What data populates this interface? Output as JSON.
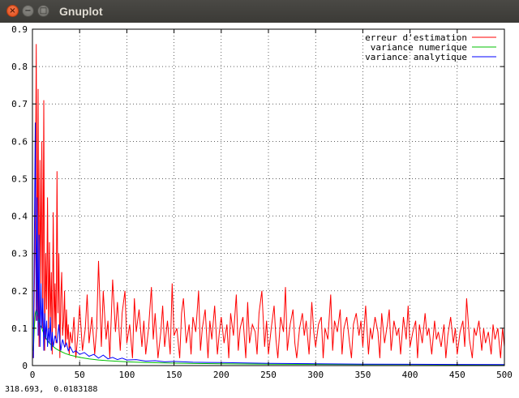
{
  "window": {
    "title": "Gnuplot",
    "close_glyph": "×",
    "min_glyph": "−",
    "max_glyph": "□"
  },
  "status": {
    "coordinates": "318.693,  0.0183188"
  },
  "chart_data": {
    "type": "line",
    "title": "",
    "xlabel": "",
    "ylabel": "",
    "xlim": [
      0,
      500
    ],
    "ylim": [
      0,
      0.9
    ],
    "xticks": [
      "0",
      "50",
      "100",
      "150",
      "200",
      "250",
      "300",
      "350",
      "400",
      "450",
      "500"
    ],
    "yticks": [
      "0",
      "0.1",
      "0.2",
      "0.3",
      "0.4",
      "0.5",
      "0.6",
      "0.7",
      "0.8",
      "0.9"
    ],
    "grid": true,
    "legend_position": "top-right",
    "series": [
      {
        "name": "erreur d'estimation",
        "color": "#ff0000",
        "x": [
          1,
          3,
          4,
          5,
          6,
          7,
          8,
          9,
          10,
          11,
          12,
          13,
          14,
          15,
          16,
          17,
          18,
          19,
          20,
          21,
          22,
          23,
          24,
          25,
          26,
          27,
          28,
          29,
          30,
          31,
          32,
          33,
          34,
          35,
          36,
          37,
          38,
          39,
          40,
          42,
          44,
          46,
          48,
          50,
          53,
          56,
          58,
          60,
          63,
          66,
          68,
          70,
          73,
          75,
          78,
          80,
          82,
          85,
          88,
          90,
          93,
          95,
          98,
          100,
          103,
          106,
          108,
          110,
          113,
          116,
          118,
          120,
          123,
          126,
          128,
          130,
          133,
          136,
          138,
          140,
          143,
          146,
          148,
          150,
          153,
          156,
          158,
          160,
          163,
          166,
          168,
          170,
          173,
          176,
          178,
          180,
          183,
          186,
          188,
          190,
          193,
          196,
          198,
          200,
          203,
          206,
          208,
          210,
          213,
          216,
          218,
          220,
          223,
          226,
          228,
          230,
          233,
          236,
          238,
          240,
          243,
          246,
          248,
          250,
          253,
          256,
          258,
          260,
          263,
          266,
          268,
          270,
          273,
          276,
          278,
          280,
          283,
          286,
          288,
          290,
          293,
          296,
          298,
          300,
          303,
          306,
          308,
          310,
          313,
          316,
          318,
          320,
          323,
          326,
          328,
          330,
          333,
          336,
          338,
          340,
          343,
          346,
          348,
          350,
          353,
          356,
          358,
          360,
          363,
          366,
          368,
          370,
          373,
          376,
          378,
          380,
          383,
          386,
          388,
          390,
          393,
          396,
          398,
          400,
          403,
          406,
          408,
          410,
          413,
          416,
          418,
          420,
          423,
          426,
          428,
          430,
          433,
          436,
          438,
          440,
          443,
          446,
          448,
          450,
          453,
          456,
          458,
          460,
          463,
          466,
          468,
          470,
          473,
          476,
          478,
          480,
          483,
          486,
          488,
          490,
          493,
          496,
          498,
          500
        ],
        "values": [
          0.02,
          0.38,
          0.86,
          0.12,
          0.74,
          0.05,
          0.55,
          0.2,
          0.6,
          0.1,
          0.71,
          0.04,
          0.3,
          0.15,
          0.45,
          0.08,
          0.33,
          0.12,
          0.25,
          0.03,
          0.41,
          0.1,
          0.22,
          0.06,
          0.52,
          0.14,
          0.3,
          0.02,
          0.18,
          0.25,
          0.08,
          0.12,
          0.2,
          0.05,
          0.15,
          0.07,
          0.11,
          0.03,
          0.09,
          0.06,
          0.13,
          0.02,
          0.08,
          0.16,
          0.04,
          0.1,
          0.19,
          0.06,
          0.13,
          0.03,
          0.1,
          0.28,
          0.05,
          0.2,
          0.07,
          0.12,
          0.02,
          0.23,
          0.09,
          0.17,
          0.04,
          0.14,
          0.2,
          0.06,
          0.11,
          0.02,
          0.18,
          0.09,
          0.15,
          0.05,
          0.12,
          0.03,
          0.1,
          0.21,
          0.07,
          0.14,
          0.02,
          0.09,
          0.16,
          0.05,
          0.12,
          0.03,
          0.22,
          0.08,
          0.1,
          0.02,
          0.14,
          0.18,
          0.06,
          0.11,
          0.03,
          0.13,
          0.09,
          0.2,
          0.04,
          0.1,
          0.15,
          0.02,
          0.12,
          0.07,
          0.16,
          0.03,
          0.09,
          0.13,
          0.06,
          0.11,
          0.02,
          0.14,
          0.08,
          0.19,
          0.04,
          0.1,
          0.13,
          0.02,
          0.17,
          0.06,
          0.11,
          0.09,
          0.03,
          0.14,
          0.2,
          0.05,
          0.12,
          0.03,
          0.1,
          0.16,
          0.07,
          0.02,
          0.13,
          0.09,
          0.21,
          0.04,
          0.11,
          0.15,
          0.06,
          0.02,
          0.1,
          0.14,
          0.08,
          0.12,
          0.03,
          0.17,
          0.09,
          0.05,
          0.11,
          0.13,
          0.02,
          0.1,
          0.07,
          0.19,
          0.04,
          0.12,
          0.09,
          0.15,
          0.03,
          0.1,
          0.13,
          0.06,
          0.02,
          0.11,
          0.14,
          0.08,
          0.12,
          0.05,
          0.16,
          0.03,
          0.1,
          0.07,
          0.13,
          0.09,
          0.02,
          0.14,
          0.06,
          0.11,
          0.15,
          0.04,
          0.12,
          0.08,
          0.1,
          0.03,
          0.13,
          0.07,
          0.16,
          0.05,
          0.09,
          0.12,
          0.02,
          0.11,
          0.06,
          0.14,
          0.08,
          0.1,
          0.03,
          0.12,
          0.07,
          0.09,
          0.05,
          0.11,
          0.02,
          0.08,
          0.13,
          0.06,
          0.1,
          0.03,
          0.09,
          0.12,
          0.05,
          0.18,
          0.07,
          0.02,
          0.1,
          0.08,
          0.12,
          0.04,
          0.1,
          0.06,
          0.09,
          0.03,
          0.11,
          0.07,
          0.1,
          0.02,
          0.1,
          0.05
        ],
        "notes": ""
      },
      {
        "name": "variance numerique",
        "color": "#00c000",
        "x": [
          1,
          2,
          3,
          4,
          5,
          6,
          8,
          10,
          12,
          15,
          18,
          20,
          25,
          30,
          35,
          40,
          50,
          60,
          70,
          80,
          100,
          120,
          150,
          180,
          200,
          250,
          300,
          350,
          400,
          450,
          500
        ],
        "values": [
          0.04,
          0.1,
          0.14,
          0.15,
          0.14,
          0.13,
          0.11,
          0.1,
          0.085,
          0.07,
          0.06,
          0.055,
          0.045,
          0.038,
          0.032,
          0.028,
          0.022,
          0.018,
          0.015,
          0.013,
          0.01,
          0.008,
          0.0065,
          0.0055,
          0.005,
          0.004,
          0.0033,
          0.0028,
          0.0025,
          0.0022,
          0.002
        ]
      },
      {
        "name": "variance analytique",
        "color": "#0000ff",
        "x": [
          1,
          2,
          3,
          4,
          5,
          6,
          7,
          8,
          9,
          10,
          11,
          12,
          13,
          14,
          15,
          16,
          17,
          18,
          19,
          20,
          21,
          22,
          24,
          26,
          28,
          30,
          32,
          34,
          36,
          38,
          40,
          43,
          46,
          50,
          55,
          60,
          65,
          70,
          75,
          80,
          85,
          90,
          95,
          100,
          110,
          120,
          130,
          140,
          150,
          170,
          200,
          250,
          300,
          350,
          400,
          450,
          500
        ],
        "values": [
          0.02,
          0.32,
          0.65,
          0.12,
          0.45,
          0.08,
          0.35,
          0.05,
          0.22,
          0.1,
          0.18,
          0.04,
          0.14,
          0.07,
          0.12,
          0.05,
          0.1,
          0.06,
          0.13,
          0.04,
          0.09,
          0.05,
          0.08,
          0.06,
          0.11,
          0.04,
          0.07,
          0.05,
          0.06,
          0.04,
          0.05,
          0.035,
          0.04,
          0.03,
          0.035,
          0.025,
          0.03,
          0.02,
          0.028,
          0.018,
          0.022,
          0.016,
          0.02,
          0.015,
          0.016,
          0.012,
          0.013,
          0.01,
          0.011,
          0.009,
          0.008,
          0.006,
          0.005,
          0.004,
          0.0035,
          0.003,
          0.0028
        ]
      }
    ]
  }
}
